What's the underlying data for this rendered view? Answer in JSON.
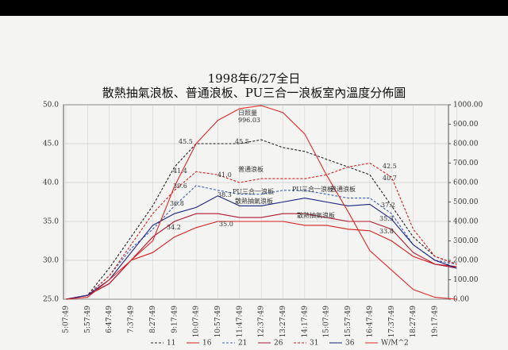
{
  "chart_data": {
    "type": "line",
    "title": "1998年6/27全日",
    "subtitle": "散熱抽氣浪板、普通浪板、PU三合一浪板室內溫度分佈圖",
    "categories": [
      "5:07:49",
      "5:57:49",
      "6:47:49",
      "7:37:49",
      "8:27:49",
      "9:17:49",
      "10:07:49",
      "10:57:49",
      "11:47:49",
      "12:37:49",
      "13:27:49",
      "14:17:49",
      "15:07:49",
      "15:57:49",
      "16:47:49",
      "17:37:49",
      "18:27:49",
      "19:17:49",
      null
    ],
    "ylim": [
      25,
      50
    ],
    "yticks": [
      {
        "value": 25,
        "label": "25.0"
      },
      {
        "value": 30,
        "label": "30.0"
      },
      {
        "value": 35,
        "label": "35.0"
      },
      {
        "value": 40,
        "label": "40.0"
      },
      {
        "value": 45,
        "label": "45.0"
      },
      {
        "value": 50,
        "label": "50.0"
      }
    ],
    "y2lim": [
      0,
      1000
    ],
    "y2ticks": [
      {
        "value": 0,
        "label": "0.00"
      },
      {
        "value": 100,
        "label": "100.00"
      },
      {
        "value": 200,
        "label": "200.00"
      },
      {
        "value": 300,
        "label": "300.00"
      },
      {
        "value": 400,
        "label": "400.00"
      },
      {
        "value": 500,
        "label": "500.00"
      },
      {
        "value": 600,
        "label": "600.00"
      },
      {
        "value": 700,
        "label": "700.00"
      },
      {
        "value": 800,
        "label": "800.00"
      },
      {
        "value": 900,
        "label": "900.00"
      },
      {
        "value": 1000,
        "label": "1000.00"
      }
    ],
    "grid": true,
    "series": [
      {
        "name": "11",
        "color": "#222222",
        "style": "dashed",
        "values": [
          25,
          25.5,
          29,
          33,
          37,
          42,
          45,
          45,
          45,
          45.5,
          44.5,
          44,
          43,
          42,
          41,
          37,
          33,
          30.5,
          29.5
        ]
      },
      {
        "name": "16",
        "color": "#d62020",
        "style": "solid",
        "values": [
          25,
          25.5,
          27,
          30,
          31,
          33,
          34.2,
          35,
          35,
          35,
          35,
          34.5,
          34.5,
          34,
          33.8,
          32.5,
          30.5,
          29.5,
          29.2
        ]
      },
      {
        "name": "21",
        "color": "#3b5fc0",
        "style": "dashed",
        "values": [
          25,
          25.5,
          28,
          31.5,
          34,
          37,
          39.6,
          39,
          38.5,
          38.5,
          39,
          39,
          38.5,
          38,
          38,
          36,
          32,
          30,
          29.5
        ]
      },
      {
        "name": "26",
        "color": "#b01830",
        "style": "solid",
        "values": [
          25,
          25.5,
          27,
          30,
          33,
          35,
          36,
          36,
          35.5,
          35.5,
          36,
          36,
          35.5,
          35,
          35,
          34,
          31,
          29.5,
          29
        ]
      },
      {
        "name": "31",
        "color": "#d62020",
        "style": "dashed",
        "values": [
          25,
          25.5,
          28,
          32,
          36,
          39,
          41.4,
          41,
          40,
          40.5,
          40.5,
          40.5,
          41,
          42,
          42.5,
          40.7,
          34,
          30.5,
          29.5
        ]
      },
      {
        "name": "36",
        "color": "#1a237e",
        "style": "solid",
        "values": [
          25,
          25.5,
          27.5,
          31,
          34.5,
          36,
          36.8,
          38.3,
          37,
          37,
          37.5,
          38,
          37.5,
          37,
          37.2,
          35.3,
          32,
          30,
          29
        ]
      },
      {
        "name": "W/M^2",
        "color": "#e02828",
        "style": "solid",
        "axis": "y2",
        "values": [
          0,
          10,
          100,
          200,
          300,
          580,
          800,
          920,
          980,
          996.03,
          960,
          850,
          640,
          450,
          250,
          150,
          50,
          10,
          0
        ]
      }
    ],
    "annotations": [
      "日照量",
      "996.03",
      "45.5",
      "45.5",
      "41.4",
      "41.0",
      "39.6",
      "38.3",
      "36.8",
      "34.2",
      "35.0",
      "42.5",
      "40.7",
      "37.2",
      "35.3",
      "33.8",
      "普通浪板",
      "PU三合一浪板",
      "散熱抽氣浪板",
      "PU三合一浪板",
      "散熱抽氣浪板",
      "普通浪板"
    ]
  }
}
